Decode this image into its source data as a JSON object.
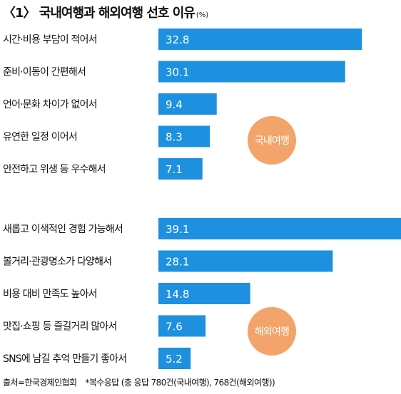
{
  "title": "〈1〉 국내여행과 해외여행 선호 이유",
  "unit": "(%)",
  "footer": {
    "source": "출처=한국경제인협회",
    "note": "*복수응답 (총 응답 780건(국내여행), 768건(해외여행))"
  },
  "colors": {
    "bar": "#1e90e0",
    "bar_label": "#ffffff",
    "badge": "#f3a46a",
    "badge_text": "#ffffff"
  },
  "chart_data": [
    {
      "type": "bar",
      "orientation": "horizontal",
      "group_label": "국내여행",
      "categories": [
        "시간·비용 부담이 적어서",
        "준비·이동이 간편해서",
        "언어·문화 차이가 없어서",
        "유연한 일정 이어서",
        "안전하고 위생 등 우수해서"
      ],
      "values": [
        32.8,
        30.1,
        9.4,
        8.3,
        7.1
      ],
      "xlim": [
        0,
        39.1
      ]
    },
    {
      "type": "bar",
      "orientation": "horizontal",
      "group_label": "해외여행",
      "categories": [
        "새롭고 이색적인 경험 가능해서",
        "볼거리·관광명소가 다양해서",
        "비용 대비 만족도 높아서",
        "맛집·쇼핑 등 즐길거리 많아서",
        "SNS에 남길 추억 만들기 좋아서"
      ],
      "values": [
        39.1,
        28.1,
        14.8,
        7.6,
        5.2
      ],
      "xlim": [
        0,
        39.1
      ]
    }
  ]
}
